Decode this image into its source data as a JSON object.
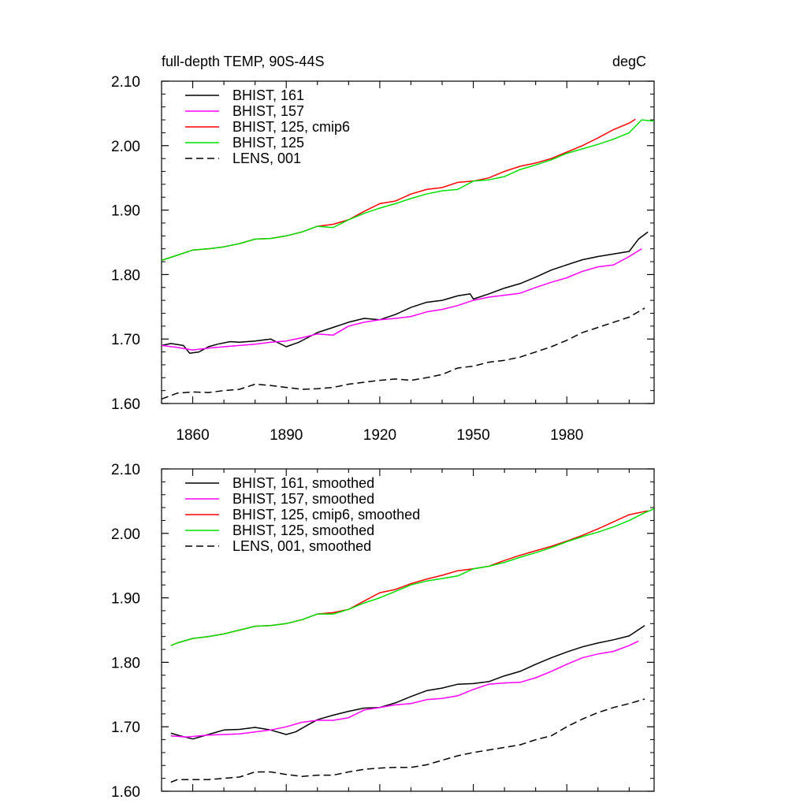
{
  "header": {
    "title": "full-depth TEMP, 90S-44S",
    "units": "degC"
  },
  "chart_data": [
    {
      "type": "line",
      "xlim": [
        1850,
        2008
      ],
      "ylim": [
        1.6,
        2.1
      ],
      "yticks": [
        "1.60",
        "1.70",
        "1.80",
        "1.90",
        "2.00",
        "2.10"
      ],
      "xticks": [
        1860,
        1890,
        1920,
        1950,
        1980
      ],
      "xtick_labels": [
        "1860",
        "1890",
        "1920",
        "1950",
        "1980"
      ],
      "grid": false,
      "legend_position": "top-left",
      "series": [
        {
          "name": "BHIST, 161",
          "color": "#000000",
          "dash": "solid",
          "x": [
            1850,
            1853,
            1857,
            1859,
            1862,
            1865,
            1868,
            1872,
            1875,
            1880,
            1885,
            1890,
            1894,
            1900,
            1905,
            1910,
            1915,
            1920,
            1925,
            1930,
            1935,
            1940,
            1945,
            1949,
            1950,
            1955,
            1960,
            1965,
            1970,
            1975,
            1980,
            1985,
            1990,
            1995,
            2000,
            2003,
            2006
          ],
          "y": [
            1.69,
            1.693,
            1.69,
            1.678,
            1.68,
            1.688,
            1.692,
            1.696,
            1.695,
            1.697,
            1.7,
            1.688,
            1.695,
            1.71,
            1.718,
            1.726,
            1.732,
            1.73,
            1.738,
            1.749,
            1.757,
            1.76,
            1.767,
            1.77,
            1.762,
            1.77,
            1.779,
            1.786,
            1.796,
            1.807,
            1.815,
            1.823,
            1.828,
            1.832,
            1.836,
            1.855,
            1.866
          ]
        },
        {
          "name": "BHIST, 157",
          "color": "#ff00ff",
          "dash": "solid",
          "x": [
            1850,
            1855,
            1860,
            1865,
            1870,
            1875,
            1880,
            1885,
            1890,
            1895,
            1900,
            1905,
            1910,
            1915,
            1920,
            1925,
            1930,
            1935,
            1940,
            1945,
            1950,
            1955,
            1960,
            1965,
            1970,
            1975,
            1980,
            1985,
            1990,
            1995,
            2000,
            2004
          ],
          "y": [
            1.69,
            1.687,
            1.683,
            1.686,
            1.688,
            1.69,
            1.692,
            1.695,
            1.697,
            1.702,
            1.708,
            1.706,
            1.72,
            1.726,
            1.73,
            1.732,
            1.735,
            1.742,
            1.746,
            1.752,
            1.76,
            1.765,
            1.768,
            1.771,
            1.78,
            1.788,
            1.795,
            1.805,
            1.812,
            1.815,
            1.828,
            1.84
          ]
        },
        {
          "name": "BHIST, 125, cmip6",
          "color": "#ff0000",
          "dash": "solid",
          "x": [
            1850,
            1855,
            1860,
            1865,
            1870,
            1875,
            1880,
            1885,
            1890,
            1895,
            1900,
            1905,
            1910,
            1915,
            1920,
            1925,
            1930,
            1935,
            1940,
            1945,
            1950,
            1955,
            1960,
            1965,
            1970,
            1975,
            1980,
            1985,
            1990,
            1995,
            2000,
            2002
          ],
          "y": [
            1.822,
            1.83,
            1.838,
            1.84,
            1.843,
            1.848,
            1.855,
            1.856,
            1.86,
            1.866,
            1.875,
            1.878,
            1.885,
            1.898,
            1.91,
            1.914,
            1.925,
            1.932,
            1.935,
            1.943,
            1.945,
            1.95,
            1.96,
            1.968,
            1.973,
            1.98,
            1.99,
            2.0,
            2.012,
            2.025,
            2.035,
            2.041
          ]
        },
        {
          "name": "BHIST, 125",
          "color": "#00e000",
          "dash": "solid",
          "x": [
            1850,
            1855,
            1860,
            1865,
            1870,
            1875,
            1880,
            1885,
            1890,
            1895,
            1900,
            1905,
            1910,
            1915,
            1920,
            1925,
            1930,
            1935,
            1940,
            1945,
            1950,
            1955,
            1960,
            1965,
            1970,
            1975,
            1980,
            1985,
            1990,
            1995,
            2000,
            2004,
            2008
          ],
          "y": [
            1.822,
            1.83,
            1.838,
            1.84,
            1.843,
            1.848,
            1.855,
            1.856,
            1.86,
            1.866,
            1.875,
            1.873,
            1.885,
            1.895,
            1.903,
            1.91,
            1.918,
            1.925,
            1.93,
            1.932,
            1.945,
            1.947,
            1.952,
            1.963,
            1.97,
            1.978,
            1.988,
            1.995,
            2.002,
            2.01,
            2.02,
            2.04,
            2.038
          ]
        },
        {
          "name": "LENS, 001",
          "color": "#000000",
          "dash": "dashed",
          "x": [
            1850,
            1855,
            1860,
            1865,
            1870,
            1875,
            1880,
            1885,
            1890,
            1895,
            1900,
            1905,
            1910,
            1915,
            1920,
            1925,
            1930,
            1935,
            1940,
            1945,
            1950,
            1955,
            1960,
            1965,
            1970,
            1975,
            1980,
            1985,
            1990,
            1995,
            2000,
            2005
          ],
          "y": [
            1.607,
            1.616,
            1.618,
            1.617,
            1.62,
            1.622,
            1.63,
            1.628,
            1.625,
            1.622,
            1.623,
            1.625,
            1.63,
            1.633,
            1.636,
            1.638,
            1.636,
            1.64,
            1.645,
            1.655,
            1.658,
            1.664,
            1.667,
            1.672,
            1.68,
            1.688,
            1.698,
            1.71,
            1.718,
            1.726,
            1.734,
            1.748
          ]
        }
      ]
    },
    {
      "type": "line",
      "xlim": [
        1850,
        2008
      ],
      "ylim": [
        1.6,
        2.1
      ],
      "yticks": [
        "1.60",
        "1.70",
        "1.80",
        "1.90",
        "2.00",
        "2.10"
      ],
      "xticks": [
        1860,
        1890,
        1920,
        1950,
        1980
      ],
      "grid": false,
      "legend_position": "top-left",
      "series": [
        {
          "name": "BHIST, 161, smoothed",
          "color": "#000000",
          "dash": "solid",
          "x": [
            1853,
            1856,
            1860,
            1865,
            1870,
            1875,
            1880,
            1885,
            1890,
            1893,
            1897,
            1900,
            1905,
            1910,
            1915,
            1920,
            1925,
            1930,
            1935,
            1940,
            1945,
            1950,
            1955,
            1960,
            1965,
            1970,
            1975,
            1980,
            1985,
            1990,
            1995,
            2000,
            2005
          ],
          "y": [
            1.69,
            1.686,
            1.681,
            1.688,
            1.695,
            1.696,
            1.699,
            1.695,
            1.688,
            1.692,
            1.703,
            1.711,
            1.718,
            1.724,
            1.729,
            1.73,
            1.737,
            1.747,
            1.756,
            1.76,
            1.766,
            1.767,
            1.77,
            1.779,
            1.786,
            1.797,
            1.807,
            1.816,
            1.824,
            1.83,
            1.835,
            1.841,
            1.857
          ]
        },
        {
          "name": "BHIST, 157, smoothed",
          "color": "#ff00ff",
          "dash": "solid",
          "x": [
            1853,
            1858,
            1862,
            1865,
            1870,
            1875,
            1880,
            1885,
            1890,
            1895,
            1900,
            1905,
            1910,
            1915,
            1920,
            1925,
            1930,
            1935,
            1940,
            1945,
            1950,
            1955,
            1960,
            1965,
            1970,
            1975,
            1980,
            1985,
            1990,
            1995,
            2000,
            2003
          ],
          "y": [
            1.686,
            1.684,
            1.686,
            1.687,
            1.688,
            1.689,
            1.692,
            1.695,
            1.7,
            1.707,
            1.71,
            1.71,
            1.714,
            1.726,
            1.73,
            1.734,
            1.736,
            1.742,
            1.744,
            1.748,
            1.758,
            1.766,
            1.768,
            1.769,
            1.776,
            1.786,
            1.797,
            1.807,
            1.813,
            1.817,
            1.826,
            1.833
          ]
        },
        {
          "name": "BHIST, 125, cmip6, smoothed",
          "color": "#ff0000",
          "dash": "solid",
          "x": [
            1853,
            1855,
            1860,
            1865,
            1870,
            1875,
            1880,
            1885,
            1890,
            1895,
            1900,
            1905,
            1910,
            1915,
            1920,
            1925,
            1930,
            1935,
            1940,
            1945,
            1950,
            1955,
            1960,
            1965,
            1970,
            1975,
            1980,
            1985,
            1990,
            1995,
            2000,
            2006
          ],
          "y": [
            1.826,
            1.83,
            1.837,
            1.84,
            1.844,
            1.85,
            1.856,
            1.857,
            1.86,
            1.866,
            1.875,
            1.877,
            1.882,
            1.895,
            1.908,
            1.913,
            1.922,
            1.929,
            1.935,
            1.942,
            1.945,
            1.949,
            1.958,
            1.966,
            1.973,
            1.98,
            1.988,
            1.997,
            2.007,
            2.018,
            2.029,
            2.035
          ]
        },
        {
          "name": "BHIST, 125, smoothed",
          "color": "#00e000",
          "dash": "solid",
          "x": [
            1853,
            1855,
            1860,
            1865,
            1870,
            1875,
            1880,
            1885,
            1890,
            1895,
            1900,
            1905,
            1910,
            1915,
            1920,
            1925,
            1930,
            1935,
            1940,
            1945,
            1950,
            1955,
            1960,
            1965,
            1970,
            1975,
            1980,
            1985,
            1990,
            1995,
            2000,
            2005,
            2008
          ],
          "y": [
            1.826,
            1.83,
            1.837,
            1.84,
            1.844,
            1.85,
            1.856,
            1.857,
            1.86,
            1.866,
            1.875,
            1.875,
            1.882,
            1.892,
            1.9,
            1.91,
            1.92,
            1.926,
            1.93,
            1.934,
            1.945,
            1.949,
            1.955,
            1.963,
            1.97,
            1.978,
            1.987,
            1.995,
            2.002,
            2.01,
            2.02,
            2.032,
            2.038
          ]
        },
        {
          "name": "LENS, 001, smoothed",
          "color": "#000000",
          "dash": "dashed",
          "x": [
            1853,
            1855,
            1860,
            1865,
            1870,
            1875,
            1880,
            1885,
            1890,
            1895,
            1900,
            1905,
            1910,
            1915,
            1920,
            1925,
            1930,
            1935,
            1940,
            1945,
            1950,
            1955,
            1960,
            1965,
            1970,
            1975,
            1980,
            1985,
            1990,
            1995,
            2000,
            2005
          ],
          "y": [
            1.614,
            1.618,
            1.618,
            1.618,
            1.62,
            1.622,
            1.63,
            1.63,
            1.626,
            1.623,
            1.625,
            1.625,
            1.63,
            1.634,
            1.636,
            1.637,
            1.637,
            1.641,
            1.648,
            1.655,
            1.66,
            1.664,
            1.668,
            1.672,
            1.68,
            1.686,
            1.7,
            1.712,
            1.722,
            1.73,
            1.736,
            1.743
          ]
        }
      ]
    }
  ]
}
